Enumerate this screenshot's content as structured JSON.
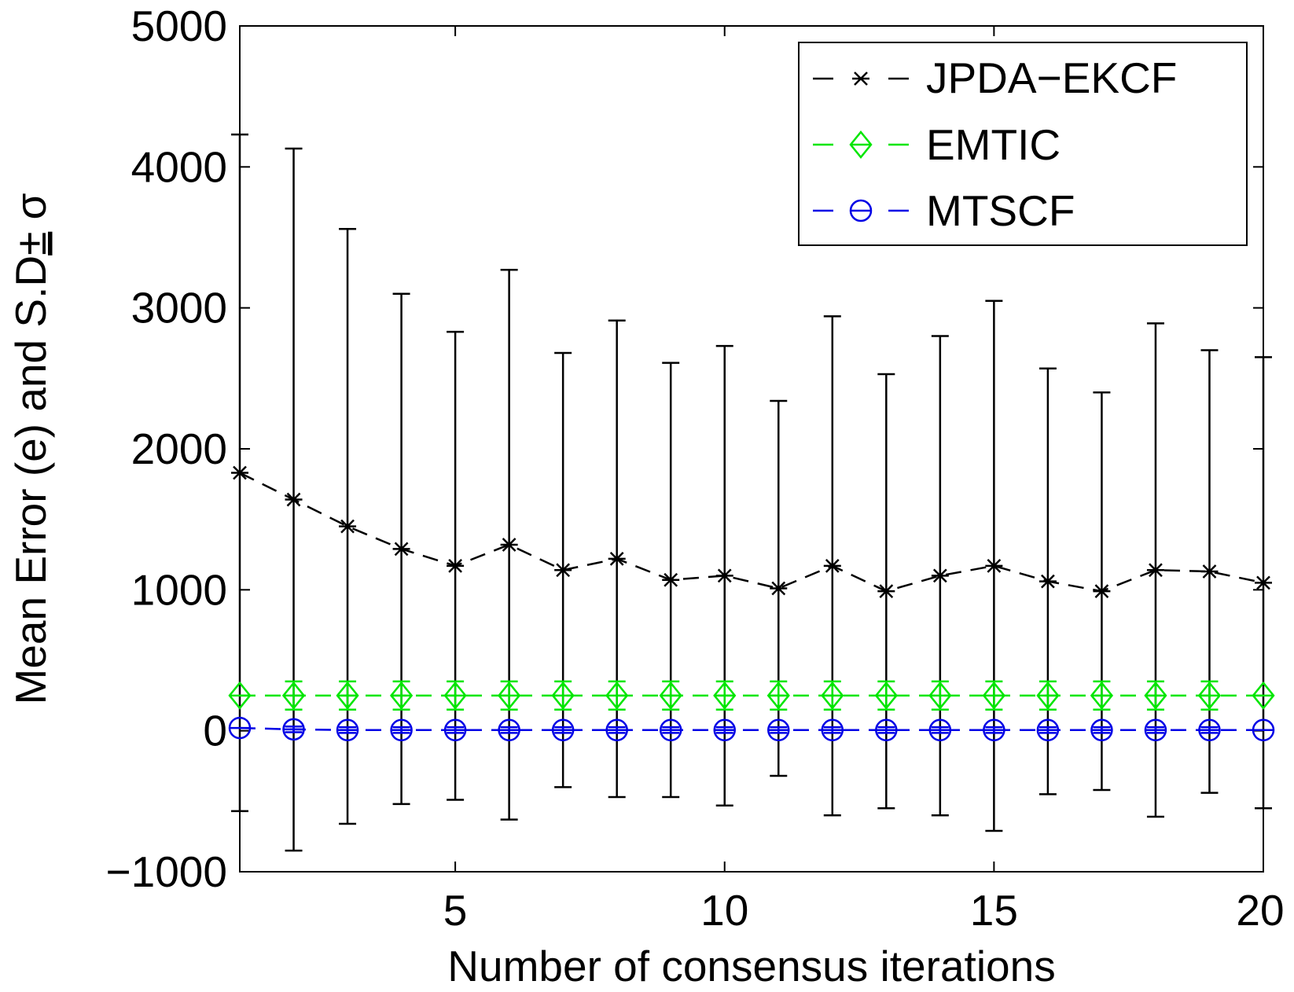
{
  "chart_data": {
    "type": "line",
    "title": "",
    "xlabel": "Number of consensus iterations",
    "ylabel_prefix": "Mean Error (e) and S.D",
    "ylabel_pm": "±",
    "ylabel_sigma": "σ",
    "xlim": [
      1,
      20
    ],
    "ylim": [
      -1000,
      5000
    ],
    "xticks": [
      5,
      10,
      15,
      20
    ],
    "xtick_labels": [
      "5",
      "10",
      "15",
      "20"
    ],
    "yticks": [
      -1000,
      0,
      1000,
      2000,
      3000,
      4000,
      5000
    ],
    "ytick_labels": [
      "−1000",
      "0",
      "1000",
      "2000",
      "3000",
      "4000",
      "5000"
    ],
    "grid": false,
    "legend_position": "top-right",
    "x": [
      1,
      2,
      3,
      4,
      5,
      6,
      7,
      8,
      9,
      10,
      11,
      12,
      13,
      14,
      15,
      16,
      17,
      18,
      19,
      20
    ],
    "series": [
      {
        "name": "JPDA−EKCF",
        "color": "#000000",
        "marker": "star",
        "linestyle": "dashed",
        "values": [
          1830,
          1640,
          1450,
          1290,
          1170,
          1320,
          1140,
          1220,
          1070,
          1100,
          1010,
          1170,
          990,
          1100,
          1170,
          1060,
          990,
          1140,
          1130,
          1050
        ],
        "error": [
          2400,
          2490,
          2110,
          1810,
          1660,
          1950,
          1540,
          1690,
          1540,
          1630,
          1330,
          1770,
          1540,
          1700,
          1880,
          1510,
          1410,
          1750,
          1570,
          1600
        ]
      },
      {
        "name": "EMTIC",
        "color": "#00e600",
        "marker": "diamond",
        "linestyle": "dashed",
        "values": [
          250,
          250,
          250,
          250,
          250,
          250,
          250,
          250,
          250,
          250,
          250,
          250,
          250,
          250,
          250,
          250,
          250,
          250,
          250,
          250
        ],
        "error": [
          0,
          100,
          100,
          100,
          100,
          100,
          100,
          100,
          100,
          100,
          100,
          100,
          100,
          100,
          100,
          100,
          100,
          100,
          100,
          0
        ]
      },
      {
        "name": "MTSCF",
        "color": "#0000e6",
        "marker": "circle",
        "linestyle": "dashed",
        "values": [
          20,
          10,
          5,
          5,
          5,
          5,
          5,
          5,
          5,
          5,
          5,
          5,
          5,
          5,
          5,
          5,
          5,
          5,
          5,
          5
        ],
        "error": [
          0,
          20,
          20,
          20,
          20,
          20,
          20,
          20,
          20,
          20,
          20,
          20,
          20,
          20,
          20,
          20,
          20,
          20,
          20,
          0
        ]
      }
    ]
  }
}
